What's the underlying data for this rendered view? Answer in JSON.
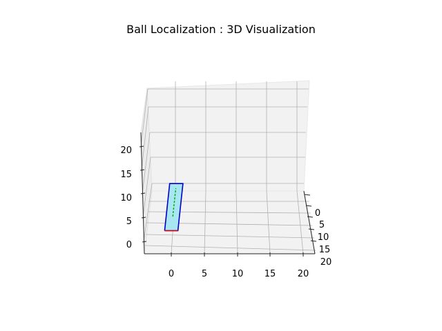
{
  "chart_data": {
    "type": "3d-line",
    "title": "Ball Localization : 3D Visualization",
    "xlabel": "",
    "ylabel": "",
    "zlabel": "",
    "x_ticks": [
      "0",
      "5",
      "10",
      "15",
      "20"
    ],
    "y_ticks": [
      "0",
      "5",
      "10",
      "15",
      "20"
    ],
    "z_ticks": [
      "0",
      "5",
      "10",
      "15",
      "20"
    ],
    "xlim": [
      -3,
      22
    ],
    "ylim": [
      -3,
      22
    ],
    "zlim": [
      -2,
      24
    ],
    "grid": true,
    "view": {
      "elev": 15,
      "azim": 0
    },
    "series": [
      {
        "color": "#0000cc",
        "points": [
          [
            -1,
            0,
            3
          ],
          [
            1,
            0,
            3
          ],
          [
            1,
            0,
            13
          ],
          [
            -1,
            0,
            13
          ],
          [
            -1,
            0,
            3
          ]
        ]
      },
      {
        "color": "#dd0000",
        "points": [
          [
            -1,
            0,
            3
          ],
          [
            1,
            0,
            3
          ]
        ]
      },
      {
        "color": "#00aa00",
        "points": [
          [
            0,
            0,
            6
          ],
          [
            0,
            0,
            12
          ]
        ]
      }
    ],
    "fill": {
      "color": "#a8e6f2"
    }
  }
}
